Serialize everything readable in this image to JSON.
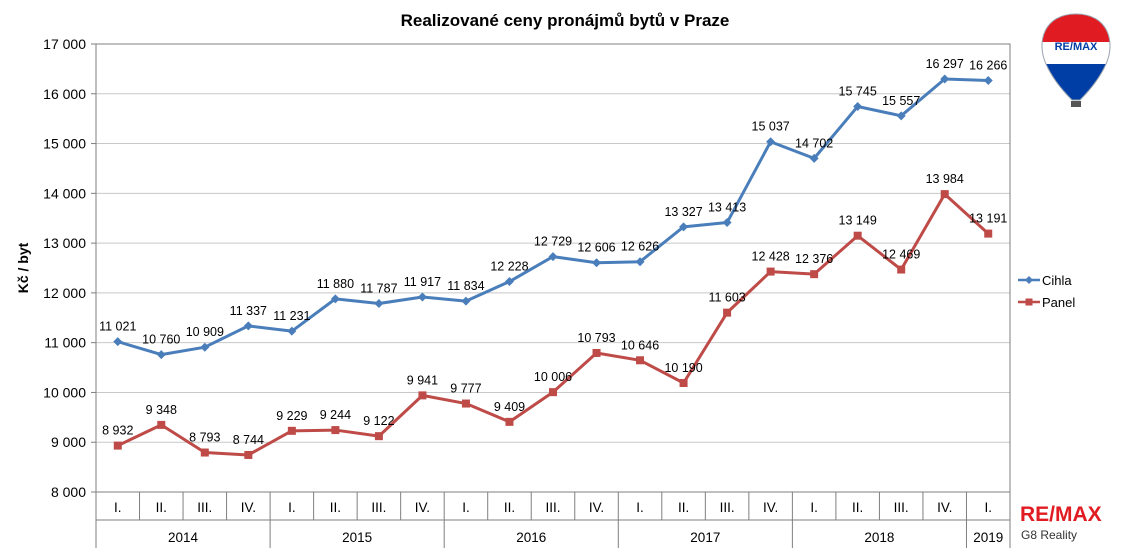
{
  "colors": {
    "cihla": "#4A7EBB",
    "panel": "#BE4B48",
    "grid": "#c8c8c8",
    "remax_red": "#E11B22",
    "remax_blue": "#003DA5"
  },
  "branding": {
    "balloon_text": "RE/MAX",
    "corner_logo": "RE/MAX",
    "corner_sub": "G8 Reality"
  },
  "chart_data": {
    "type": "line",
    "title": "Realizované ceny pronájmů bytů v Praze",
    "ylabel": "Kč / byt",
    "xlabel": "",
    "ylim": [
      8000,
      17000
    ],
    "yticks": [
      8000,
      9000,
      10000,
      11000,
      12000,
      13000,
      14000,
      15000,
      16000,
      17000
    ],
    "ytick_labels": [
      "8 000",
      "9 000",
      "10 000",
      "11 000",
      "12 000",
      "13 000",
      "14 000",
      "15 000",
      "16 000",
      "17 000"
    ],
    "grid": true,
    "legend_position": "right",
    "categories": [
      "I.",
      "II.",
      "III.",
      "IV.",
      "I.",
      "II.",
      "III.",
      "IV.",
      "I.",
      "II.",
      "III.",
      "IV.",
      "I.",
      "II.",
      "III.",
      "IV.",
      "I.",
      "II.",
      "III.",
      "IV.",
      "I."
    ],
    "years": [
      {
        "label": "2014",
        "count": 4
      },
      {
        "label": "2015",
        "count": 4
      },
      {
        "label": "2016",
        "count": 4
      },
      {
        "label": "2017",
        "count": 4
      },
      {
        "label": "2018",
        "count": 4
      },
      {
        "label": "2019",
        "count": 1
      }
    ],
    "series": [
      {
        "name": "Cihla",
        "marker": "diamond",
        "values": [
          11021,
          10760,
          10909,
          11337,
          11231,
          11880,
          11787,
          11917,
          11834,
          12228,
          12729,
          12606,
          12626,
          13327,
          13413,
          15037,
          14702,
          15745,
          15557,
          16297,
          16266
        ],
        "labels": [
          "11 021",
          "10 760",
          "10 909",
          "11 337",
          "11 231",
          "11 880",
          "11 787",
          "11 917",
          "11 834",
          "12 228",
          "12 729",
          "12 606",
          "12 626",
          "13 327",
          "13 413",
          "15 037",
          "14 702",
          "15 745",
          "15 557",
          "16 297",
          "16 266"
        ]
      },
      {
        "name": "Panel",
        "marker": "square",
        "values": [
          8932,
          9348,
          8793,
          8744,
          9229,
          9244,
          9122,
          9941,
          9777,
          9409,
          10006,
          10793,
          10646,
          10190,
          11603,
          12428,
          12376,
          13149,
          12469,
          13984,
          13191
        ],
        "labels": [
          "8 932",
          "9 348",
          "8 793",
          "8 744",
          "9 229",
          "9 244",
          "9 122",
          "9 941",
          "9 777",
          "9 409",
          "10 006",
          "10 793",
          "10 646",
          "10 190",
          "11 603",
          "12 428",
          "12 376",
          "13 149",
          "12 469",
          "13 984",
          "13 191"
        ]
      }
    ]
  }
}
